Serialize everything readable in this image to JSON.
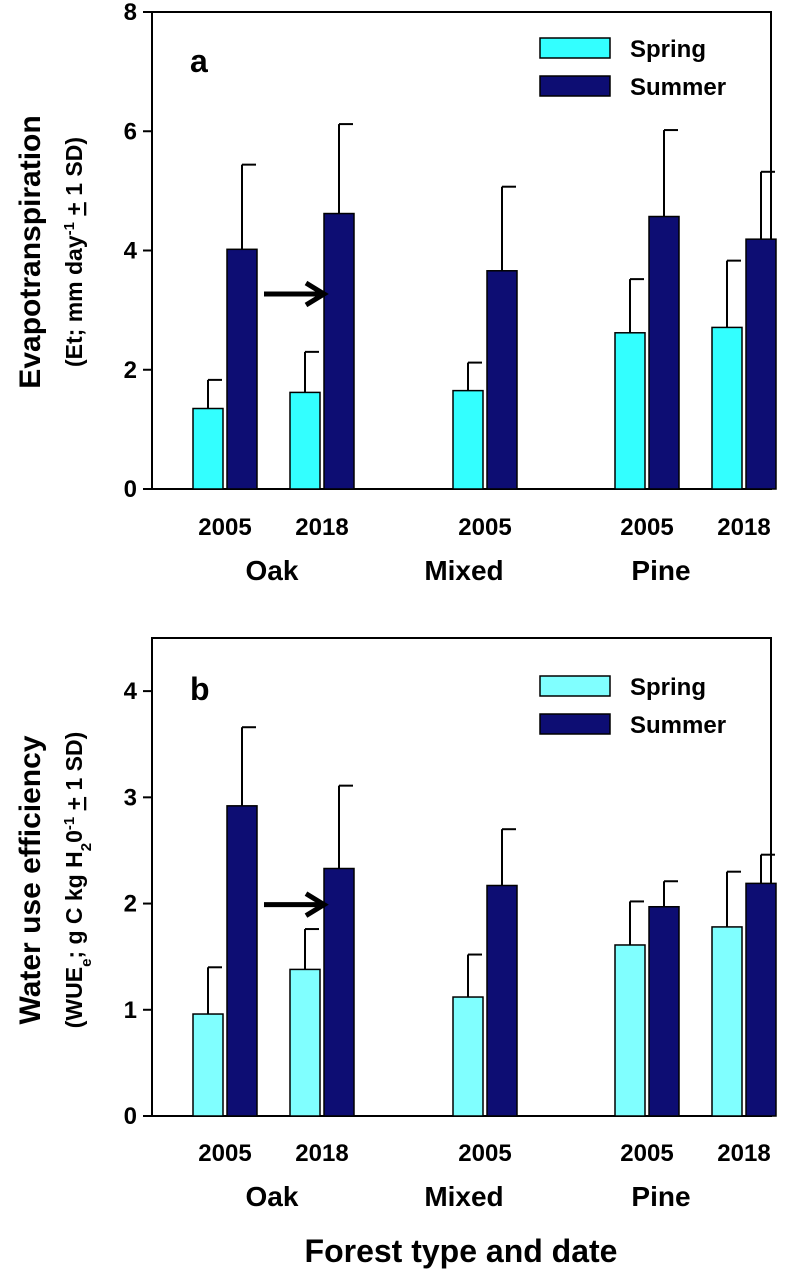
{
  "chart_data": [
    {
      "type": "bar",
      "panel": "a",
      "title": "",
      "ylabel_line1": "Evapotranspiration",
      "ylabel_line2_parts": [
        "(Et; mm day",
        "-1",
        " ",
        "+",
        " 1 SD)"
      ],
      "xlabel": "",
      "ylim": [
        0,
        8
      ],
      "yticks": [
        "0",
        "2",
        "4",
        "6",
        "8"
      ],
      "categories": [
        "2005",
        "2018",
        "2005",
        "2005",
        "2018"
      ],
      "groups": [
        "Oak",
        "Mixed",
        "Pine"
      ],
      "legend_position": "top-right",
      "series": [
        {
          "name": "Spring",
          "color": "#33ffff",
          "values": [
            1.35,
            1.62,
            1.65,
            2.62,
            2.71
          ],
          "errors": [
            0.48,
            0.68,
            0.47,
            0.9,
            1.12
          ]
        },
        {
          "name": "Summer",
          "color": "#0d0d73",
          "values": [
            4.02,
            4.62,
            3.66,
            4.57,
            4.19
          ],
          "errors": [
            1.42,
            1.5,
            1.41,
            1.45,
            1.13
          ]
        }
      ],
      "annotation": "arrow pointing right between Oak 2005 and Oak 2018"
    },
    {
      "type": "bar",
      "panel": "b",
      "title": "",
      "ylabel_line1": "Water use efficiency",
      "ylabel_line2_parts": [
        "(WUE",
        "e",
        "; g C kg H",
        "2",
        "0",
        "-1",
        " ",
        "+",
        " 1 SD)"
      ],
      "xlabel": "Forest type and date",
      "ylim": [
        0,
        4.5
      ],
      "yticks": [
        "0",
        "1",
        "2",
        "3",
        "4"
      ],
      "categories": [
        "2005",
        "2018",
        "2005",
        "2005",
        "2018"
      ],
      "groups": [
        "Oak",
        "Mixed",
        "Pine"
      ],
      "legend_position": "top-right",
      "series": [
        {
          "name": "Spring",
          "color": "#80ffff",
          "values": [
            0.96,
            1.38,
            1.12,
            1.61,
            1.78
          ],
          "errors": [
            0.44,
            0.38,
            0.4,
            0.41,
            0.52
          ]
        },
        {
          "name": "Summer",
          "color": "#0d0d73",
          "values": [
            2.92,
            2.33,
            2.17,
            1.97,
            2.19
          ],
          "errors": [
            0.74,
            0.78,
            0.53,
            0.24,
            0.27
          ]
        }
      ],
      "annotation": "arrow pointing right between Oak 2005 and Oak 2018"
    }
  ]
}
